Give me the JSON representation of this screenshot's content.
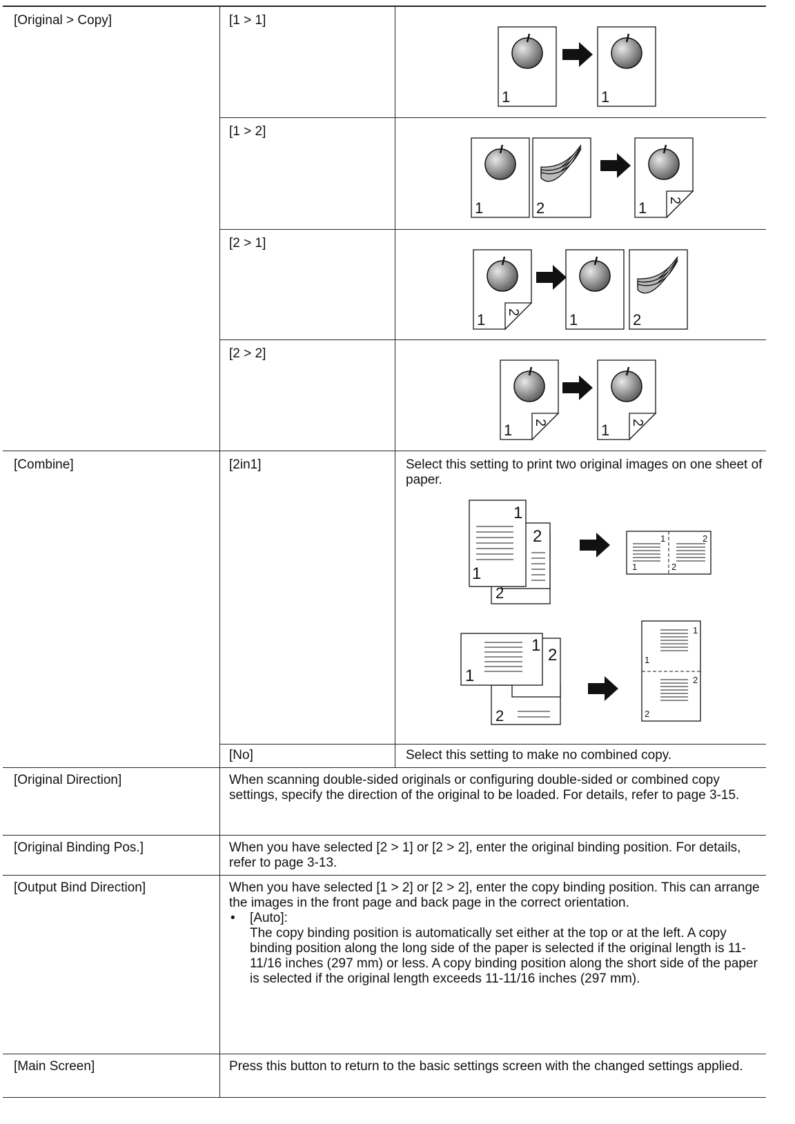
{
  "table": {
    "rows": [
      {
        "setting": "[Original > Copy]",
        "options": [
          {
            "option": "[1 > 1]"
          },
          {
            "option": "[1 > 2]"
          },
          {
            "option": "[2 > 1]"
          },
          {
            "option": "[2 > 2]"
          }
        ]
      },
      {
        "setting": "[Combine]",
        "options": [
          {
            "option": "[2in1]",
            "description": "Select this setting to print two original images on one sheet of paper."
          },
          {
            "option": "[No]",
            "description": "Select this setting to make no combined copy."
          }
        ]
      },
      {
        "setting": "[Original Direction]",
        "description": "When scanning double-sided originals or configuring double-sided or combined copy settings, specify the direction of the original to be loaded. For details, refer to page 3-15."
      },
      {
        "setting": "[Original Binding Pos.]",
        "description": "When you have selected [2 > 1] or [2 > 2], enter the original binding position. For details, refer to page 3-13."
      },
      {
        "setting": "[Output Bind Direction]",
        "description": "When you have selected [1 > 2] or [2 > 2], enter the copy binding position. This can arrange the images in the front page and back page in the correct orientation.",
        "bullet": {
          "label": "[Auto]:",
          "text": "The copy binding position is automatically set either at the top or at the left. A copy binding position along the long side of the paper is selected if the original length is 11-11/16 inches (297 mm) or less. A copy binding position along the short side of the paper is selected if the original length exceeds 11-11/16 inches (297 mm)."
        }
      },
      {
        "setting": "[Main Screen]",
        "description": "Press this button to return to the basic settings screen with the changed settings applied."
      }
    ]
  },
  "diagram_digits": [
    "1",
    "2"
  ]
}
